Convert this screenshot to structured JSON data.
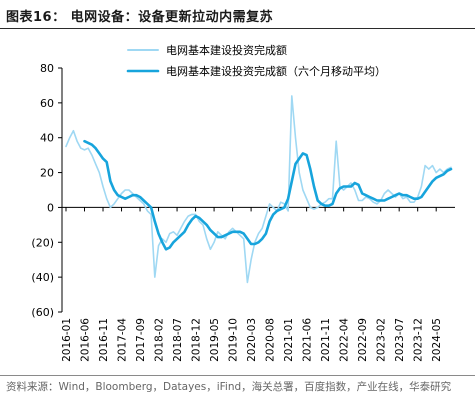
{
  "title": "图表16：  电网设备：设备更新拉动内需复苏",
  "source": "资料来源：Wind，Bloomberg，Datayes，iFind，海关总署，百度指数，产业在线，华泰研究",
  "colors": {
    "raw": "#9fd8f3",
    "ma": "#17a4dc",
    "axis": "#000000"
  },
  "chart_data": {
    "type": "line",
    "title": "图表16：  电网设备：设备更新拉动内需复苏",
    "xlabel": "",
    "ylabel": "",
    "ylim": [
      -60,
      80
    ],
    "yticks": [
      80,
      60,
      40,
      20,
      0,
      -20,
      -40,
      -60
    ],
    "ytick_labels": [
      "80",
      "60",
      "40",
      "20",
      "0",
      "(20)",
      "(40)",
      "(60)"
    ],
    "x_tick_labels": [
      "2016-01",
      "2016-06",
      "2016-11",
      "2017-04",
      "2017-09",
      "2018-02",
      "2018-07",
      "2018-12",
      "2019-05",
      "2019-10",
      "2020-03",
      "2020-08",
      "2021-01",
      "2021-06",
      "2021-11",
      "2022-04",
      "2022-09",
      "2023-02",
      "2023-07",
      "2023-12",
      "2024-05"
    ],
    "x_start": "2016-01",
    "x_end": "2024-09",
    "grid": false,
    "legend_position": "top",
    "series": [
      {
        "name": "电网基本建设投资完成额",
        "style": "thin",
        "points": [
          [
            "2016-01",
            35
          ],
          [
            "2016-02",
            40
          ],
          [
            "2016-03",
            44
          ],
          [
            "2016-04",
            38
          ],
          [
            "2016-05",
            34
          ],
          [
            "2016-06",
            33
          ],
          [
            "2016-07",
            34
          ],
          [
            "2016-08",
            30
          ],
          [
            "2016-09",
            25
          ],
          [
            "2016-10",
            20
          ],
          [
            "2016-11",
            12
          ],
          [
            "2016-12",
            5
          ],
          [
            "2017-01",
            0
          ],
          [
            "2017-02",
            2
          ],
          [
            "2017-03",
            5
          ],
          [
            "2017-04",
            8
          ],
          [
            "2017-05",
            10
          ],
          [
            "2017-06",
            10
          ],
          [
            "2017-07",
            8
          ],
          [
            "2017-08",
            6
          ],
          [
            "2017-09",
            4
          ],
          [
            "2017-10",
            2
          ],
          [
            "2017-11",
            -2
          ],
          [
            "2017-12",
            -4
          ],
          [
            "2018-01",
            -40
          ],
          [
            "2018-02",
            -22
          ],
          [
            "2018-03",
            -18
          ],
          [
            "2018-04",
            -20
          ],
          [
            "2018-05",
            -15
          ],
          [
            "2018-06",
            -14
          ],
          [
            "2018-07",
            -16
          ],
          [
            "2018-08",
            -12
          ],
          [
            "2018-09",
            -8
          ],
          [
            "2018-10",
            -5
          ],
          [
            "2018-11",
            -4
          ],
          [
            "2018-12",
            -4
          ],
          [
            "2019-01",
            -8
          ],
          [
            "2019-02",
            -10
          ],
          [
            "2019-03",
            -18
          ],
          [
            "2019-04",
            -24
          ],
          [
            "2019-05",
            -20
          ],
          [
            "2019-06",
            -14
          ],
          [
            "2019-07",
            -16
          ],
          [
            "2019-08",
            -18
          ],
          [
            "2019-09",
            -14
          ],
          [
            "2019-10",
            -12
          ],
          [
            "2019-11",
            -14
          ],
          [
            "2019-12",
            -16
          ],
          [
            "2020-01",
            -18
          ],
          [
            "2020-02",
            -43
          ],
          [
            "2020-03",
            -30
          ],
          [
            "2020-04",
            -20
          ],
          [
            "2020-05",
            -15
          ],
          [
            "2020-06",
            -12
          ],
          [
            "2020-07",
            -5
          ],
          [
            "2020-08",
            2
          ],
          [
            "2020-09",
            0
          ],
          [
            "2020-10",
            -2
          ],
          [
            "2020-11",
            3
          ],
          [
            "2020-12",
            2
          ],
          [
            "2021-01",
            -2
          ],
          [
            "2021-02",
            64
          ],
          [
            "2021-03",
            40
          ],
          [
            "2021-04",
            20
          ],
          [
            "2021-05",
            10
          ],
          [
            "2021-06",
            5
          ],
          [
            "2021-07",
            0
          ],
          [
            "2021-08",
            -1
          ],
          [
            "2021-09",
            0
          ],
          [
            "2021-10",
            2
          ],
          [
            "2021-11",
            3
          ],
          [
            "2021-12",
            5
          ],
          [
            "2022-01",
            5
          ],
          [
            "2022-02",
            38
          ],
          [
            "2022-03",
            12
          ],
          [
            "2022-04",
            10
          ],
          [
            "2022-05",
            12
          ],
          [
            "2022-06",
            14
          ],
          [
            "2022-07",
            10
          ],
          [
            "2022-08",
            4
          ],
          [
            "2022-09",
            4
          ],
          [
            "2022-10",
            6
          ],
          [
            "2022-11",
            5
          ],
          [
            "2022-12",
            3
          ],
          [
            "2023-01",
            2
          ],
          [
            "2023-02",
            4
          ],
          [
            "2023-03",
            8
          ],
          [
            "2023-04",
            10
          ],
          [
            "2023-05",
            8
          ],
          [
            "2023-06",
            6
          ],
          [
            "2023-07",
            8
          ],
          [
            "2023-08",
            5
          ],
          [
            "2023-09",
            6
          ],
          [
            "2023-10",
            3
          ],
          [
            "2023-11",
            3
          ],
          [
            "2023-12",
            6
          ],
          [
            "2024-01",
            12
          ],
          [
            "2024-02",
            24
          ],
          [
            "2024-03",
            22
          ],
          [
            "2024-04",
            24
          ],
          [
            "2024-05",
            20
          ],
          [
            "2024-06",
            22
          ],
          [
            "2024-07",
            20
          ],
          [
            "2024-08",
            22
          ],
          [
            "2024-09",
            23
          ]
        ]
      },
      {
        "name": "电网基本建设投资完成额（六个月移动平均）",
        "style": "thick",
        "points": [
          [
            "2016-06",
            38
          ],
          [
            "2016-07",
            37
          ],
          [
            "2016-08",
            36
          ],
          [
            "2016-09",
            34
          ],
          [
            "2016-10",
            31
          ],
          [
            "2016-11",
            28
          ],
          [
            "2016-12",
            26
          ],
          [
            "2017-01",
            15
          ],
          [
            "2017-02",
            10
          ],
          [
            "2017-03",
            7
          ],
          [
            "2017-04",
            6
          ],
          [
            "2017-05",
            5
          ],
          [
            "2017-06",
            6
          ],
          [
            "2017-07",
            7
          ],
          [
            "2017-08",
            7
          ],
          [
            "2017-09",
            6
          ],
          [
            "2017-10",
            4
          ],
          [
            "2017-11",
            2
          ],
          [
            "2017-12",
            0
          ],
          [
            "2018-01",
            -8
          ],
          [
            "2018-02",
            -15
          ],
          [
            "2018-03",
            -20
          ],
          [
            "2018-04",
            -24
          ],
          [
            "2018-05",
            -23
          ],
          [
            "2018-06",
            -20
          ],
          [
            "2018-07",
            -18
          ],
          [
            "2018-08",
            -16
          ],
          [
            "2018-09",
            -14
          ],
          [
            "2018-10",
            -10
          ],
          [
            "2018-11",
            -7
          ],
          [
            "2018-12",
            -5
          ],
          [
            "2019-01",
            -6
          ],
          [
            "2019-02",
            -8
          ],
          [
            "2019-03",
            -10
          ],
          [
            "2019-04",
            -13
          ],
          [
            "2019-05",
            -15
          ],
          [
            "2019-06",
            -17
          ],
          [
            "2019-07",
            -17
          ],
          [
            "2019-08",
            -16
          ],
          [
            "2019-09",
            -15
          ],
          [
            "2019-10",
            -14
          ],
          [
            "2019-11",
            -14
          ],
          [
            "2019-12",
            -14
          ],
          [
            "2020-01",
            -15
          ],
          [
            "2020-02",
            -18
          ],
          [
            "2020-03",
            -21
          ],
          [
            "2020-04",
            -21
          ],
          [
            "2020-05",
            -20
          ],
          [
            "2020-06",
            -18
          ],
          [
            "2020-07",
            -15
          ],
          [
            "2020-08",
            -8
          ],
          [
            "2020-09",
            -4
          ],
          [
            "2020-10",
            -2
          ],
          [
            "2020-11",
            -1
          ],
          [
            "2020-12",
            0
          ],
          [
            "2021-01",
            5
          ],
          [
            "2021-02",
            15
          ],
          [
            "2021-03",
            25
          ],
          [
            "2021-04",
            28
          ],
          [
            "2021-05",
            31
          ],
          [
            "2021-06",
            30
          ],
          [
            "2021-07",
            22
          ],
          [
            "2021-08",
            12
          ],
          [
            "2021-09",
            4
          ],
          [
            "2021-10",
            2
          ],
          [
            "2021-11",
            1
          ],
          [
            "2021-12",
            1
          ],
          [
            "2022-01",
            2
          ],
          [
            "2022-02",
            8
          ],
          [
            "2022-03",
            11
          ],
          [
            "2022-04",
            12
          ],
          [
            "2022-05",
            12
          ],
          [
            "2022-06",
            12
          ],
          [
            "2022-07",
            14
          ],
          [
            "2022-08",
            13
          ],
          [
            "2022-09",
            8
          ],
          [
            "2022-10",
            7
          ],
          [
            "2022-11",
            6
          ],
          [
            "2022-12",
            5
          ],
          [
            "2023-01",
            4
          ],
          [
            "2023-02",
            4
          ],
          [
            "2023-03",
            4
          ],
          [
            "2023-04",
            5
          ],
          [
            "2023-05",
            6
          ],
          [
            "2023-06",
            7
          ],
          [
            "2023-07",
            8
          ],
          [
            "2023-08",
            7
          ],
          [
            "2023-09",
            7
          ],
          [
            "2023-10",
            6
          ],
          [
            "2023-11",
            5
          ],
          [
            "2023-12",
            5
          ],
          [
            "2024-01",
            6
          ],
          [
            "2024-02",
            9
          ],
          [
            "2024-03",
            12
          ],
          [
            "2024-04",
            15
          ],
          [
            "2024-05",
            17
          ],
          [
            "2024-06",
            18
          ],
          [
            "2024-07",
            19
          ],
          [
            "2024-08",
            21
          ],
          [
            "2024-09",
            22
          ]
        ]
      }
    ]
  }
}
